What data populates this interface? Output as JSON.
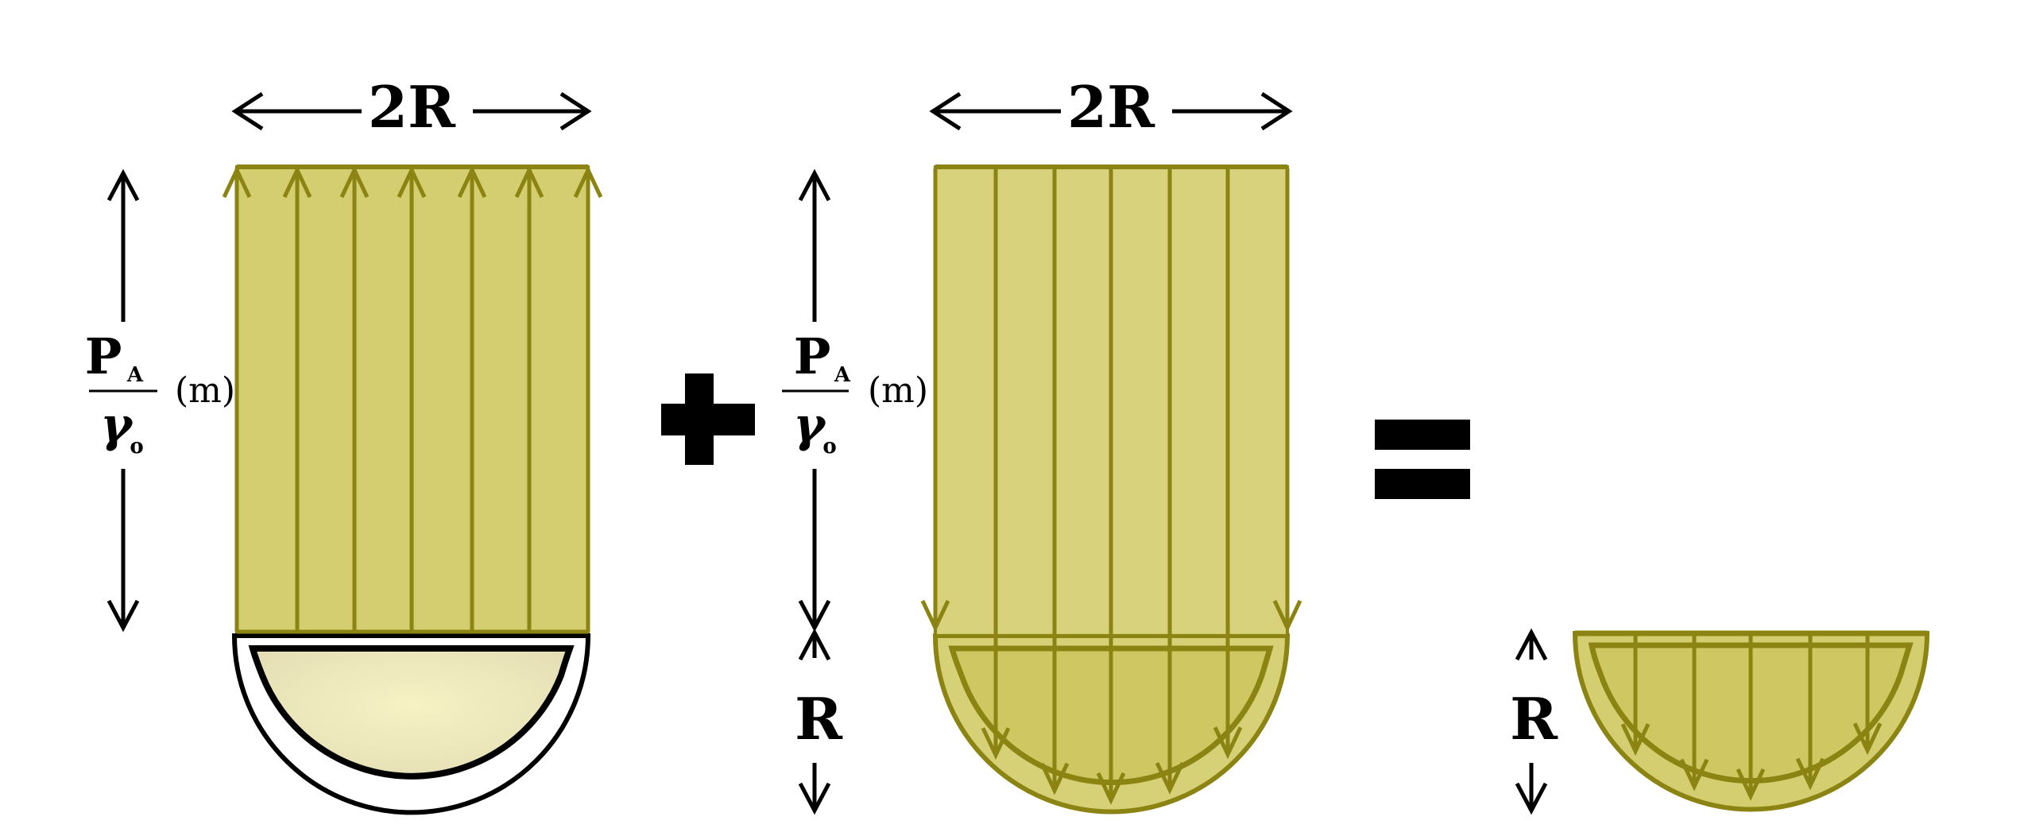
{
  "colors": {
    "fill": "#D4CE70",
    "stroke": "#8C8412",
    "bowl_light": "#F4F0C0",
    "bowl_edge": "#E6DFB0",
    "black": "#000000"
  },
  "panel1": {
    "width_label": "2R",
    "height_label_num_main": "P",
    "height_label_num_sub": "A",
    "height_label_den_main": "γ",
    "height_label_den_sub": "o",
    "height_unit": "(m)"
  },
  "operator_plus": "plus",
  "panel2": {
    "width_label": "2R",
    "height_label_num_main": "P",
    "height_label_num_sub": "A",
    "height_label_den_main": "γ",
    "height_label_den_sub": "o",
    "height_unit": "(m)",
    "depth_label": "R"
  },
  "operator_equals": "equals",
  "panel3": {
    "depth_label": "R"
  }
}
